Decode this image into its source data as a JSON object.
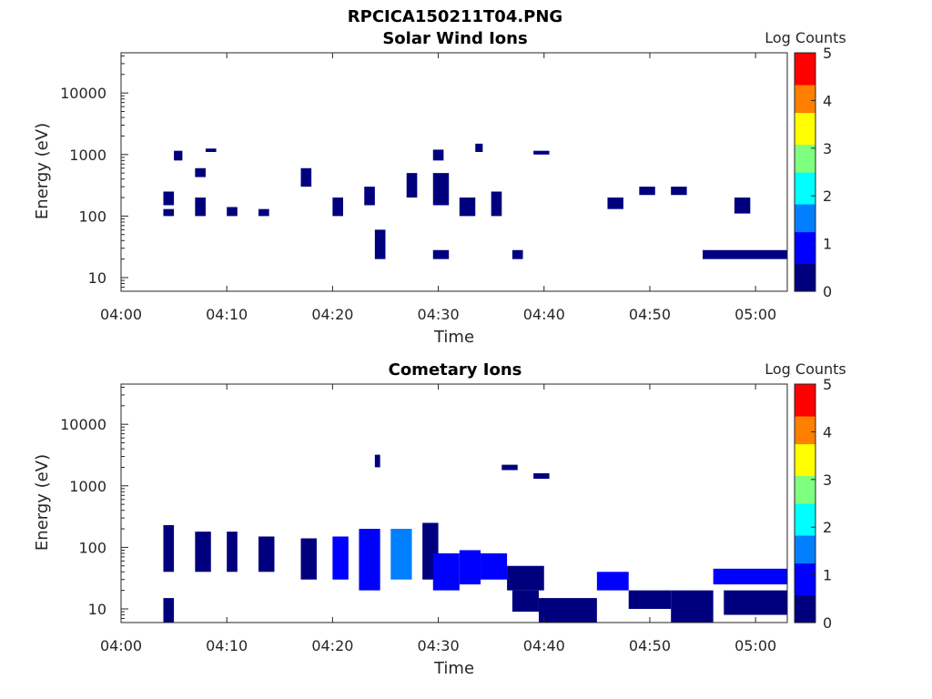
{
  "figure_title": "RPCICA150211T04.PNG",
  "colorbar_colors": [
    "#00007f",
    "#0000ff",
    "#007fff",
    "#00ffff",
    "#7fff7f",
    "#ffff00",
    "#ff7f00",
    "#ff0000",
    "#7f0000"
  ],
  "chart_data": [
    {
      "type": "heatmap",
      "title": "Solar Wind Ions",
      "xlabel": "Time",
      "ylabel": "Energy (eV)",
      "xlim": [
        "04:00",
        "05:03"
      ],
      "ylim": [
        6,
        45000
      ],
      "yscale": "log",
      "x_ticks": [
        "04:00",
        "04:10",
        "04:20",
        "04:30",
        "04:40",
        "04:50",
        "05:00"
      ],
      "y_ticks": [
        "10",
        "100",
        "1000",
        "10000"
      ],
      "colorbar": {
        "label": "Log Counts",
        "range": [
          0,
          5
        ],
        "ticks": [
          "0",
          "1",
          "2",
          "3",
          "4",
          "5"
        ]
      },
      "cells": [
        {
          "t": [
            "04:04",
            "04:05"
          ],
          "e": [
            100,
            130
          ],
          "v": 0.1
        },
        {
          "t": [
            "04:04",
            "04:05"
          ],
          "e": [
            150,
            250
          ],
          "v": 0.1
        },
        {
          "t": [
            "04:05",
            "04:05.8"
          ],
          "e": [
            800,
            1150
          ],
          "v": 0.1
        },
        {
          "t": [
            "04:07",
            "04:08"
          ],
          "e": [
            100,
            200
          ],
          "v": 0.1
        },
        {
          "t": [
            "04:07",
            "04:08"
          ],
          "e": [
            430,
            600
          ],
          "v": 0.1
        },
        {
          "t": [
            "04:08",
            "04:09"
          ],
          "e": [
            1100,
            1250
          ],
          "v": 0.1
        },
        {
          "t": [
            "04:10",
            "04:11"
          ],
          "e": [
            100,
            140
          ],
          "v": 0.1
        },
        {
          "t": [
            "04:13",
            "04:14"
          ],
          "e": [
            100,
            130
          ],
          "v": 0.1
        },
        {
          "t": [
            "04:17",
            "04:18"
          ],
          "e": [
            300,
            600
          ],
          "v": 0.1
        },
        {
          "t": [
            "04:20",
            "04:21"
          ],
          "e": [
            100,
            200
          ],
          "v": 0.1
        },
        {
          "t": [
            "04:23",
            "04:24"
          ],
          "e": [
            150,
            300
          ],
          "v": 0.1
        },
        {
          "t": [
            "04:24",
            "04:25"
          ],
          "e": [
            20,
            60
          ],
          "v": 0.1
        },
        {
          "t": [
            "04:27",
            "04:28"
          ],
          "e": [
            200,
            500
          ],
          "v": 0.1
        },
        {
          "t": [
            "04:29.5",
            "04:30.5"
          ],
          "e": [
            800,
            1200
          ],
          "v": 0.1
        },
        {
          "t": [
            "04:29.5",
            "04:31"
          ],
          "e": [
            150,
            500
          ],
          "v": 0.1
        },
        {
          "t": [
            "04:29.5",
            "04:31"
          ],
          "e": [
            20,
            28
          ],
          "v": 0.1
        },
        {
          "t": [
            "04:32",
            "04:33.5"
          ],
          "e": [
            100,
            200
          ],
          "v": 0.1
        },
        {
          "t": [
            "04:33.5",
            "04:34.2"
          ],
          "e": [
            1100,
            1500
          ],
          "v": 0.1
        },
        {
          "t": [
            "04:35",
            "04:36"
          ],
          "e": [
            100,
            250
          ],
          "v": 0.1
        },
        {
          "t": [
            "04:37",
            "04:38"
          ],
          "e": [
            20,
            28
          ],
          "v": 0.1
        },
        {
          "t": [
            "04:39",
            "04:40.5"
          ],
          "e": [
            1000,
            1150
          ],
          "v": 0.1
        },
        {
          "t": [
            "04:46",
            "04:47.5"
          ],
          "e": [
            130,
            200
          ],
          "v": 0.1
        },
        {
          "t": [
            "04:49",
            "04:50.5"
          ],
          "e": [
            220,
            300
          ],
          "v": 0.1
        },
        {
          "t": [
            "04:52",
            "04:53.5"
          ],
          "e": [
            220,
            300
          ],
          "v": 0.1
        },
        {
          "t": [
            "04:55",
            "05:03"
          ],
          "e": [
            20,
            28
          ],
          "v": 0.1
        },
        {
          "t": [
            "04:58",
            "04:59.5"
          ],
          "e": [
            110,
            200
          ],
          "v": 0.1
        }
      ]
    },
    {
      "type": "heatmap",
      "title": "Cometary Ions",
      "xlabel": "Time",
      "ylabel": "Energy (eV)",
      "xlim": [
        "04:00",
        "05:03"
      ],
      "ylim": [
        6,
        45000
      ],
      "yscale": "log",
      "x_ticks": [
        "04:00",
        "04:10",
        "04:20",
        "04:30",
        "04:40",
        "04:50",
        "05:00"
      ],
      "y_ticks": [
        "10",
        "100",
        "1000",
        "10000"
      ],
      "colorbar": {
        "label": "Log Counts",
        "range": [
          0,
          5
        ],
        "ticks": [
          "0",
          "1",
          "2",
          "3",
          "4",
          "5"
        ]
      },
      "cells": [
        {
          "t": [
            "04:04",
            "04:05"
          ],
          "e": [
            40,
            230
          ],
          "v": 0.3
        },
        {
          "t": [
            "04:04",
            "04:05"
          ],
          "e": [
            6,
            15
          ],
          "v": 0.1
        },
        {
          "t": [
            "04:07",
            "04:08.5"
          ],
          "e": [
            40,
            180
          ],
          "v": 0.6
        },
        {
          "t": [
            "04:10",
            "04:11"
          ],
          "e": [
            40,
            180
          ],
          "v": 0.4
        },
        {
          "t": [
            "04:13",
            "04:14.5"
          ],
          "e": [
            40,
            150
          ],
          "v": 0.5
        },
        {
          "t": [
            "04:17",
            "04:18.5"
          ],
          "e": [
            30,
            140
          ],
          "v": 0.6
        },
        {
          "t": [
            "04:20",
            "04:21.5"
          ],
          "e": [
            30,
            150
          ],
          "v": 0.7
        },
        {
          "t": [
            "04:22.5",
            "04:24.5"
          ],
          "e": [
            20,
            200
          ],
          "v": 1.2
        },
        {
          "t": [
            "04:25.5",
            "04:27.5"
          ],
          "e": [
            30,
            200
          ],
          "v": 1.4
        },
        {
          "t": [
            "04:28.5",
            "04:30"
          ],
          "e": [
            30,
            250
          ],
          "v": 0.6
        },
        {
          "t": [
            "04:29.5",
            "04:32"
          ],
          "e": [
            20,
            80
          ],
          "v": 1.2
        },
        {
          "t": [
            "04:32",
            "04:34"
          ],
          "e": [
            25,
            90
          ],
          "v": 1.0
        },
        {
          "t": [
            "04:34",
            "04:36.5"
          ],
          "e": [
            30,
            80
          ],
          "v": 1.1
        },
        {
          "t": [
            "04:36.5",
            "04:40"
          ],
          "e": [
            20,
            50
          ],
          "v": 0.5
        },
        {
          "t": [
            "04:37",
            "04:39.5"
          ],
          "e": [
            9,
            20
          ],
          "v": 0.3
        },
        {
          "t": [
            "04:39.5",
            "04:45"
          ],
          "e": [
            6,
            15
          ],
          "v": 0.2
        },
        {
          "t": [
            "04:45",
            "04:48"
          ],
          "e": [
            20,
            40
          ],
          "v": 0.8
        },
        {
          "t": [
            "04:48",
            "04:52"
          ],
          "e": [
            10,
            20
          ],
          "v": 0.2
        },
        {
          "t": [
            "04:52",
            "04:56"
          ],
          "e": [
            6,
            20
          ],
          "v": 0.3
        },
        {
          "t": [
            "04:56",
            "05:03"
          ],
          "e": [
            25,
            45
          ],
          "v": 0.9
        },
        {
          "t": [
            "04:57",
            "05:03"
          ],
          "e": [
            8,
            20
          ],
          "v": 0.4
        },
        {
          "t": [
            "04:24",
            "04:24.5"
          ],
          "e": [
            2000,
            3200
          ],
          "v": 0.1
        },
        {
          "t": [
            "04:36",
            "04:37.5"
          ],
          "e": [
            1800,
            2200
          ],
          "v": 0.1
        },
        {
          "t": [
            "04:39",
            "04:40.5"
          ],
          "e": [
            1300,
            1600
          ],
          "v": 0.1
        }
      ]
    }
  ]
}
